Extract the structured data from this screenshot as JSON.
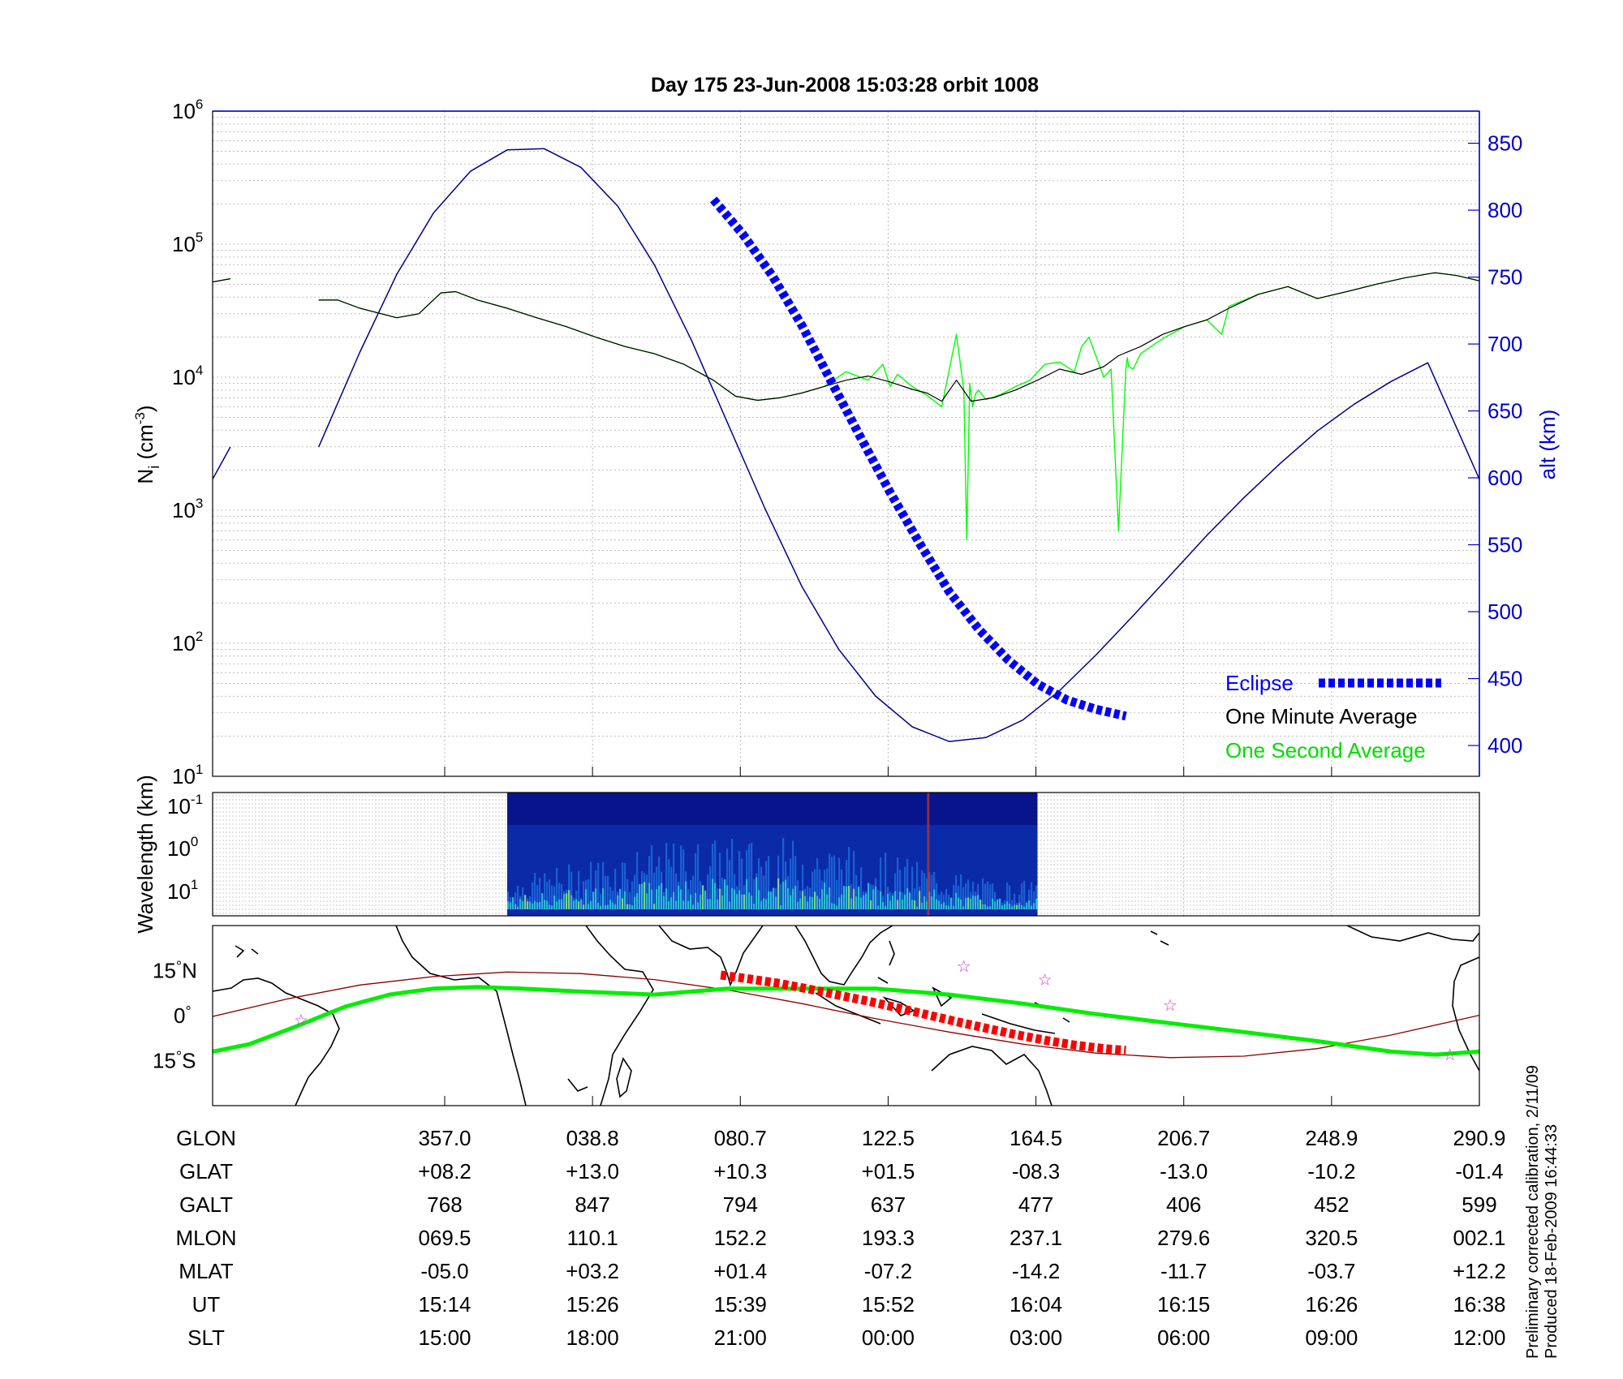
{
  "title": "Day 175  23-Jun-2008 15:03:28   orbit 1008",
  "footnote": {
    "line1": "Preliminary corrected calibration, 2/11/09",
    "line2": "Produced 18-Feb-2009 16:44:33"
  },
  "colors": {
    "altitude": "#00008B",
    "eclipse": "#0000FF",
    "minute_avg": "#000000",
    "second_avg": "#00FF00",
    "track_red": "#8B0000",
    "track_red_eclipse": "#FF0000",
    "track_green": "#00EE00",
    "star": "#CC33CC",
    "axis_right": "#0000CC"
  },
  "chart_data": [
    {
      "type": "line",
      "panel": "density",
      "ylabel_main": "N",
      "ylabel_sub": "i",
      "ylabel_unit_pre": " (cm",
      "ylabel_unit_sup": "-3",
      "ylabel_unit_post": ")",
      "yscale": "log",
      "ylim": [
        10,
        1000000
      ],
      "yticks": [
        {
          "base": "10",
          "exp": "1"
        },
        {
          "base": "10",
          "exp": "2"
        },
        {
          "base": "10",
          "exp": "3"
        },
        {
          "base": "10",
          "exp": "4"
        },
        {
          "base": "10",
          "exp": "5"
        },
        {
          "base": "10",
          "exp": "6"
        }
      ],
      "y2label": "alt (km)",
      "y2lim": [
        377,
        874
      ],
      "y2ticks": [
        "400",
        "450",
        "500",
        "550",
        "600",
        "650",
        "700",
        "750",
        "800",
        "850"
      ],
      "xlim": [
        0,
        8.6
      ],
      "grid": true,
      "legend_position": "bottom-right",
      "legend": {
        "eclipse": "Eclipse",
        "minute": "One Minute Average",
        "second": "One Second Average"
      },
      "series": [
        {
          "name": "One Minute Average",
          "segments": [
            {
              "x": [
                0,
                0.12
              ],
              "y": [
                52000,
                55000
              ]
            },
            {
              "x": [
                0.72,
                0.85,
                1.0,
                1.25,
                1.4,
                1.55,
                1.65,
                1.8,
                2.0,
                2.2,
                2.4,
                2.6,
                2.8,
                3.0,
                3.2,
                3.4,
                3.55,
                3.7,
                3.85,
                4.0,
                4.15,
                4.3,
                4.45,
                4.6,
                4.75,
                4.85,
                4.95,
                5.05,
                5.15,
                5.3,
                5.45,
                5.6,
                5.75,
                5.9,
                6.05,
                6.15,
                6.3,
                6.45,
                6.6,
                6.75,
                6.9,
                7.1,
                7.3,
                7.5,
                7.7,
                7.9,
                8.1,
                8.3,
                8.45,
                8.6
              ],
              "y": [
                38000,
                38000,
                33000,
                28000,
                30000,
                43000,
                44000,
                38000,
                33000,
                28000,
                24000,
                20000,
                17000,
                15000,
                12500,
                9500,
                7200,
                6700,
                7000,
                7600,
                8500,
                9500,
                10200,
                9200,
                8100,
                7600,
                6600,
                9500,
                6600,
                7000,
                8000,
                9500,
                11500,
                10500,
                12000,
                14500,
                17000,
                21000,
                24000,
                27000,
                33000,
                42000,
                48000,
                39000,
                44000,
                50000,
                56000,
                61000,
                58000,
                53000
              ]
            }
          ]
        },
        {
          "name": "One Second Average",
          "segments": [
            {
              "x": [
                0,
                0.12
              ],
              "y": [
                52000,
                55000
              ]
            },
            {
              "x": [
                0.72,
                0.85,
                1.0,
                1.25,
                1.4,
                1.55,
                1.65,
                1.8,
                2.0,
                2.2,
                2.4,
                2.6,
                2.8,
                3.0,
                3.2,
                3.4,
                3.55,
                3.7,
                3.85,
                4.0,
                4.15,
                4.3,
                4.45,
                4.55,
                4.6,
                4.65,
                4.75,
                4.85,
                4.95,
                5.05,
                5.1,
                5.12,
                5.14,
                5.16,
                5.18,
                5.2,
                5.25,
                5.35,
                5.45,
                5.55,
                5.65,
                5.75,
                5.85,
                5.9,
                5.95,
                6.05,
                6.1,
                6.15,
                6.2,
                6.21,
                6.22,
                6.25,
                6.3,
                6.45,
                6.6,
                6.75,
                6.85,
                6.9,
                7.1,
                7.3,
                7.5,
                7.7,
                7.9,
                8.1,
                8.3,
                8.45,
                8.6
              ],
              "y": [
                38000,
                38000,
                33000,
                28000,
                30000,
                43000,
                44000,
                38000,
                33000,
                28000,
                24000,
                20000,
                17000,
                15000,
                12500,
                9500,
                7200,
                6700,
                7000,
                7600,
                8500,
                11000,
                9500,
                12500,
                8500,
                10500,
                8500,
                7300,
                6000,
                21000,
                8000,
                600,
                9000,
                6000,
                7500,
                8000,
                6800,
                7400,
                8500,
                9500,
                12500,
                13000,
                11000,
                17000,
                20000,
                10000,
                11500,
                700,
                11500,
                14000,
                12000,
                11500,
                15000,
                19500,
                24000,
                27000,
                21000,
                34000,
                42000,
                48000,
                39000,
                44000,
                50000,
                56000,
                61000,
                58000,
                53000
              ]
            }
          ]
        },
        {
          "name": "Altitude",
          "axis": "right",
          "segments": [
            {
              "x": [
                0,
                0.12
              ],
              "y": [
                599,
                623
              ]
            },
            {
              "x": [
                0.72,
                1.0,
                1.25,
                1.5,
                1.75,
                2.0,
                2.25,
                2.5,
                2.75,
                3.0,
                3.25,
                3.5,
                3.75,
                4.0,
                4.25,
                4.5,
                4.75,
                5.0,
                5.25,
                5.5,
                5.75,
                6.0,
                6.25,
                6.5,
                6.75,
                7.0,
                7.25,
                7.5,
                7.75,
                8.0,
                8.25,
                8.6
              ],
              "y": [
                623,
                694,
                752,
                798,
                829,
                845,
                846,
                832,
                803,
                759,
                703,
                640,
                577,
                519,
                472,
                437,
                414,
                403,
                406,
                419,
                441,
                468,
                497,
                527,
                557,
                585,
                611,
                635,
                655,
                672,
                686,
                599
              ]
            }
          ]
        },
        {
          "name": "Eclipse",
          "axis": "right",
          "x": [
            3.4,
            3.6,
            3.8,
            4.0,
            4.2,
            4.4,
            4.6,
            4.8,
            5.0,
            5.2,
            5.4,
            5.6,
            5.8,
            6.0,
            6.2
          ],
          "y": [
            808,
            782,
            751,
            714,
            672,
            630,
            589,
            551,
            515,
            487,
            464,
            446,
            434,
            427,
            422
          ]
        }
      ]
    },
    {
      "type": "heatmap",
      "panel": "spectrogram",
      "ylabel": "Wavelength (km)",
      "yticks": [
        {
          "base": "10",
          "exp": "-1"
        },
        {
          "base": "10",
          "exp": "0"
        },
        {
          "base": "10",
          "exp": "1"
        }
      ],
      "x_start": 2.0,
      "x_end": 5.6,
      "xlim": [
        0,
        8.6
      ]
    },
    {
      "type": "line",
      "panel": "ground-track",
      "yticks": [
        {
          "value": "15",
          "hem": "N"
        },
        {
          "value": "0",
          "hem": ""
        },
        {
          "value": "15",
          "hem": "S"
        }
      ],
      "ylim": [
        -30,
        30
      ],
      "xlim": [
        0,
        8.6
      ],
      "series": [
        {
          "name": "Geographic track",
          "x": [
            0,
            0.5,
            1.0,
            1.5,
            2.0,
            2.5,
            3.0,
            3.5,
            4.0,
            4.5,
            5.0,
            5.5,
            6.0,
            6.5,
            7.0,
            7.5,
            8.0,
            8.6
          ],
          "y": [
            -0.3,
            5.5,
            10.2,
            13.0,
            14.5,
            14.0,
            12.0,
            8.5,
            4.0,
            -1.0,
            -5.5,
            -9.5,
            -12.5,
            -14.0,
            -13.5,
            -11.0,
            -6.5,
            0.1
          ]
        },
        {
          "name": "Magnetic track",
          "x": [
            0,
            0.25,
            0.6,
            0.9,
            1.2,
            1.5,
            1.8,
            2.1,
            2.5,
            3.0,
            3.5,
            4.0,
            4.5,
            5.0,
            5.5,
            6.0,
            6.5,
            7.0,
            7.5,
            8.0,
            8.3,
            8.6
          ],
          "y": [
            -12,
            -9.5,
            -3,
            3,
            7,
            9,
            9.5,
            9,
            8,
            7,
            9,
            9,
            9,
            7,
            4,
            0.5,
            -2.5,
            -5.5,
            -8.5,
            -12,
            -13,
            -12
          ]
        },
        {
          "name": "Eclipse track",
          "x": [
            3.45,
            3.65,
            3.85,
            4.05,
            4.25,
            4.45,
            4.65,
            4.85,
            5.05,
            5.25,
            5.45,
            5.65,
            5.85,
            6.05,
            6.2
          ],
          "y": [
            13.5,
            12.2,
            10.7,
            8.8,
            6.8,
            4.8,
            2.6,
            0.3,
            -2.0,
            -4.2,
            -6.3,
            -8.2,
            -9.8,
            -11.0,
            -11.6
          ]
        }
      ],
      "markers": [
        {
          "x": 0.6,
          "y": -1.5
        },
        {
          "x": 5.1,
          "y": 16.5
        },
        {
          "x": 5.65,
          "y": 12.0
        },
        {
          "x": 6.5,
          "y": 3.5
        },
        {
          "x": 8.4,
          "y": -13.0
        }
      ]
    }
  ],
  "table": {
    "row_labels": [
      "GLON",
      "GLAT",
      "GALT",
      "MLON",
      "MLAT",
      "UT",
      "SLT"
    ],
    "columns": [
      [
        "357.0",
        "+08.2",
        "768",
        "069.5",
        "-05.0",
        "15:14",
        "15:00"
      ],
      [
        "038.8",
        "+13.0",
        "847",
        "110.1",
        "+03.2",
        "15:26",
        "18:00"
      ],
      [
        "080.7",
        "+10.3",
        "794",
        "152.2",
        "+01.4",
        "15:39",
        "21:00"
      ],
      [
        "122.5",
        "+01.5",
        "637",
        "193.3",
        "-07.2",
        "15:52",
        "00:00"
      ],
      [
        "164.5",
        "-08.3",
        "477",
        "237.1",
        "-14.2",
        "16:04",
        "03:00"
      ],
      [
        "206.7",
        "-13.0",
        "406",
        "279.6",
        "-11.7",
        "16:15",
        "06:00"
      ],
      [
        "248.9",
        "-10.2",
        "452",
        "320.5",
        "-03.7",
        "16:26",
        "09:00"
      ],
      [
        "290.9",
        "-01.4",
        "599",
        "002.1",
        "+12.2",
        "16:38",
        "12:00"
      ]
    ]
  }
}
